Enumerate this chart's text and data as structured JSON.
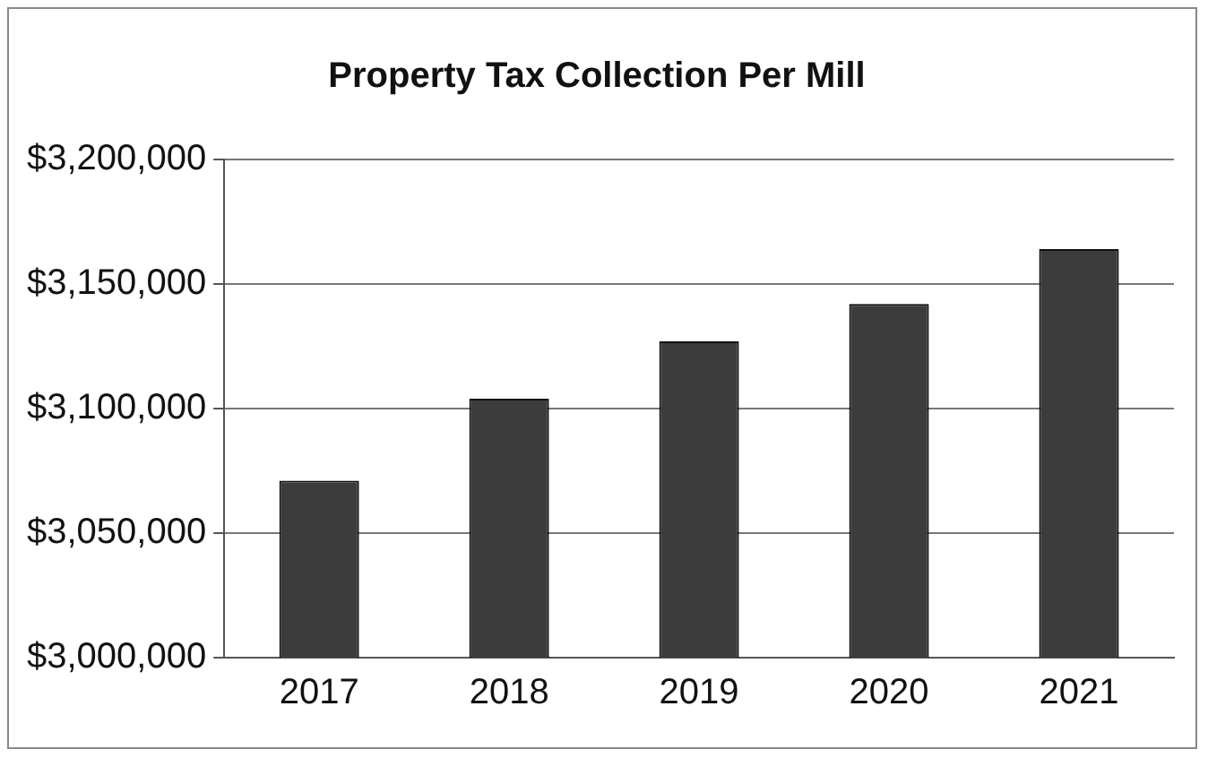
{
  "chart_data": {
    "type": "bar",
    "title": "Property Tax Collection Per Mill",
    "categories": [
      "2017",
      "2018",
      "2019",
      "2020",
      "2021"
    ],
    "values": [
      3071000,
      3104000,
      3127000,
      3142000,
      3164000
    ],
    "color": "#3c3c3c",
    "ylim": [
      3000000,
      3200000
    ],
    "yticks": [
      {
        "value": 3000000,
        "label": "$3,000,000"
      },
      {
        "value": 3050000,
        "label": "$3,050,000"
      },
      {
        "value": 3100000,
        "label": "$3,100,000"
      },
      {
        "value": 3150000,
        "label": "$3,150,000"
      },
      {
        "value": 3200000,
        "label": "$3,200,000"
      }
    ],
    "grid": "y"
  }
}
